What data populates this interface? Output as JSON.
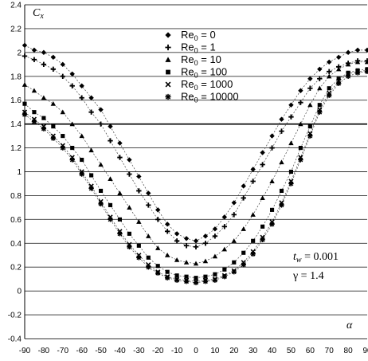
{
  "chart_data": {
    "type": "scatter",
    "title": "",
    "ylabel": "C",
    "ylabel_sub": "x",
    "xlabel": "α",
    "xlim": [
      -90,
      90
    ],
    "ylim": [
      -0.4,
      2.4
    ],
    "xticks": [
      "-90",
      "-80",
      "-70",
      "-60",
      "-50",
      "-40",
      "-30",
      "-20",
      "-10",
      "0",
      "10",
      "20",
      "30",
      "40",
      "50",
      "60",
      "70",
      "80",
      "90"
    ],
    "yticks": [
      "-0.4",
      "-0.2",
      "0",
      "0.2",
      "0.4",
      "0.6",
      "0.8",
      "1",
      "1.2",
      "1.4",
      "1.6",
      "1.8",
      "2",
      "2.2",
      "2.4"
    ],
    "grid": "horizontal",
    "legend_position": "top-center",
    "x": [
      -90,
      -85,
      -80,
      -75,
      -70,
      -65,
      -60,
      -55,
      -50,
      -45,
      -40,
      -35,
      -30,
      -25,
      -20,
      -15,
      -10,
      -5,
      0,
      5,
      10,
      15,
      20,
      25,
      30,
      35,
      40,
      45,
      50,
      55,
      60,
      65,
      70,
      75,
      80,
      85,
      90
    ],
    "series": [
      {
        "name": "Re",
        "name_sub": "0",
        "name_suffix": " = 0",
        "marker": "diamond",
        "values": [
          2.06,
          2.02,
          2.0,
          1.96,
          1.9,
          1.82,
          1.72,
          1.62,
          1.52,
          1.38,
          1.24,
          1.1,
          0.96,
          0.82,
          0.68,
          0.56,
          0.48,
          0.44,
          0.42,
          0.46,
          0.52,
          0.62,
          0.74,
          0.88,
          1.02,
          1.16,
          1.3,
          1.44,
          1.56,
          1.68,
          1.78,
          1.86,
          1.92,
          1.96,
          2.0,
          2.02,
          2.02
        ]
      },
      {
        "name": "Re",
        "name_sub": "0",
        "name_suffix": " = 1",
        "marker": "plus",
        "values": [
          1.97,
          1.94,
          1.9,
          1.86,
          1.8,
          1.72,
          1.62,
          1.5,
          1.4,
          1.26,
          1.12,
          0.98,
          0.84,
          0.72,
          0.6,
          0.5,
          0.42,
          0.38,
          0.37,
          0.4,
          0.46,
          0.54,
          0.64,
          0.78,
          0.92,
          1.06,
          1.2,
          1.34,
          1.46,
          1.58,
          1.7,
          1.78,
          1.84,
          1.88,
          1.91,
          1.93,
          1.93
        ]
      },
      {
        "name": "Re",
        "name_sub": "0",
        "name_suffix": " = 10",
        "marker": "triangle",
        "values": [
          1.73,
          1.68,
          1.62,
          1.57,
          1.5,
          1.4,
          1.3,
          1.18,
          1.06,
          0.94,
          0.82,
          0.7,
          0.58,
          0.46,
          0.36,
          0.3,
          0.26,
          0.24,
          0.23,
          0.25,
          0.29,
          0.35,
          0.42,
          0.52,
          0.64,
          0.78,
          0.92,
          1.08,
          1.24,
          1.4,
          1.56,
          1.7,
          1.8,
          1.86,
          1.9,
          1.92,
          1.92
        ]
      },
      {
        "name": "Re",
        "name_sub": "0",
        "name_suffix": " = 100",
        "marker": "square",
        "values": [
          1.57,
          1.5,
          1.45,
          1.38,
          1.3,
          1.2,
          1.1,
          0.97,
          0.84,
          0.72,
          0.6,
          0.48,
          0.38,
          0.28,
          0.21,
          0.16,
          0.13,
          0.12,
          0.11,
          0.12,
          0.14,
          0.18,
          0.24,
          0.32,
          0.42,
          0.54,
          0.68,
          0.84,
          1.0,
          1.2,
          1.38,
          1.56,
          1.7,
          1.78,
          1.83,
          1.85,
          1.86
        ]
      },
      {
        "name": "Re",
        "name_sub": "0",
        "name_suffix": " = 1000",
        "marker": "x",
        "values": [
          1.5,
          1.44,
          1.38,
          1.3,
          1.22,
          1.12,
          1.0,
          0.88,
          0.75,
          0.62,
          0.5,
          0.39,
          0.3,
          0.22,
          0.16,
          0.12,
          0.1,
          0.09,
          0.08,
          0.09,
          0.1,
          0.13,
          0.17,
          0.24,
          0.33,
          0.45,
          0.58,
          0.74,
          0.92,
          1.12,
          1.32,
          1.52,
          1.66,
          1.76,
          1.82,
          1.84,
          1.85
        ]
      },
      {
        "name": "Re",
        "name_sub": "0",
        "name_suffix": " = 10000",
        "marker": "star",
        "values": [
          1.48,
          1.42,
          1.36,
          1.28,
          1.2,
          1.1,
          0.98,
          0.86,
          0.73,
          0.6,
          0.48,
          0.37,
          0.28,
          0.2,
          0.15,
          0.11,
          0.09,
          0.08,
          0.07,
          0.08,
          0.09,
          0.12,
          0.16,
          0.22,
          0.31,
          0.43,
          0.56,
          0.72,
          0.9,
          1.1,
          1.3,
          1.5,
          1.64,
          1.74,
          1.8,
          1.83,
          1.84
        ]
      }
    ],
    "annotations": [
      {
        "main": "t",
        "sub": "w",
        "suffix": " = 0.001"
      },
      {
        "main": "γ = 1.4"
      }
    ]
  }
}
